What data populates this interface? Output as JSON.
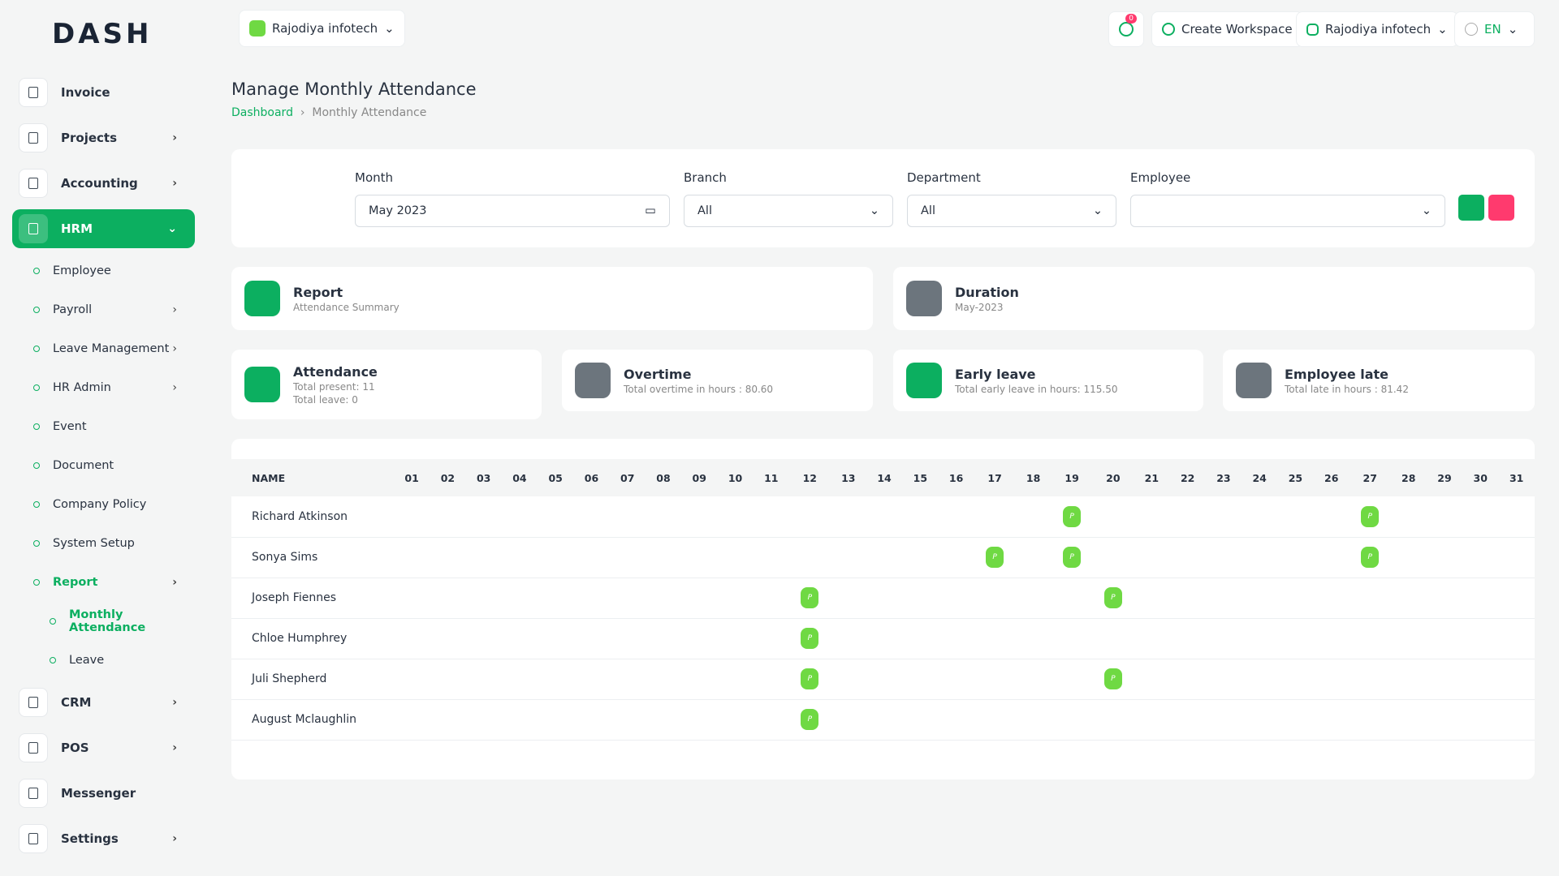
{
  "header": {
    "logo": "DASH",
    "workspace": "Rajodiya infotech",
    "notifications": "0",
    "create_workspace": "Create Workspace",
    "user": "Rajodiya infotech",
    "language": "EN"
  },
  "sidebar": {
    "items": [
      "Invoice",
      "Projects",
      "Accounting",
      "HRM"
    ],
    "hrm_items": [
      "Employee",
      "Payroll",
      "Leave Management",
      "HR Admin",
      "Event",
      "Document",
      "Company Policy",
      "System Setup",
      "Report"
    ],
    "report_items": [
      "Monthly Attendance",
      "Leave"
    ],
    "bottom_items": [
      "CRM",
      "POS",
      "Messenger",
      "Settings"
    ]
  },
  "page": {
    "title": "Manage Monthly Attendance",
    "breadcrumb": [
      "Dashboard",
      "Monthly Attendance"
    ]
  },
  "filters": {
    "month_label": "Month",
    "month_value": "May 2023",
    "branch_label": "Branch",
    "branch_value": "All",
    "department_label": "Department",
    "department_value": "All",
    "employee_label": "Employee"
  },
  "cards": {
    "report": {
      "title": "Report",
      "subtitle": "Attendance Summary"
    },
    "duration": {
      "title": "Duration",
      "subtitle": "May-2023"
    },
    "attendance": {
      "title": "Attendance",
      "lines": [
        "Total present: 11",
        "Total leave: 0"
      ]
    },
    "overtime": {
      "title": "Overtime",
      "subtitle": "Total overtime in hours : 80.60"
    },
    "early_leave": {
      "title": "Early leave",
      "subtitle": "Total early leave in hours: 115.50"
    },
    "late": {
      "title": "Employee late",
      "subtitle": "Total late in hours : 81.42"
    }
  },
  "table": {
    "name_header": "NAME",
    "days": [
      "01",
      "02",
      "03",
      "04",
      "05",
      "06",
      "07",
      "08",
      "09",
      "10",
      "11",
      "12",
      "13",
      "14",
      "15",
      "16",
      "17",
      "18",
      "19",
      "20",
      "21",
      "22",
      "23",
      "24",
      "25",
      "26",
      "27",
      "28",
      "29",
      "30",
      "31"
    ],
    "rows": [
      {
        "name": "Richard Atkinson",
        "cells": [
          null,
          null,
          null,
          null,
          null,
          null,
          null,
          null,
          null,
          null,
          null,
          null,
          null,
          null,
          null,
          null,
          null,
          null,
          "P",
          null,
          null,
          null,
          null,
          null,
          null,
          null,
          "P",
          null,
          null,
          null,
          null
        ]
      },
      {
        "name": "Sonya Sims",
        "cells": [
          null,
          null,
          null,
          null,
          null,
          null,
          null,
          null,
          null,
          null,
          null,
          null,
          null,
          null,
          null,
          null,
          "P",
          null,
          "P",
          null,
          null,
          null,
          null,
          null,
          null,
          null,
          "P",
          null,
          null,
          null,
          null
        ]
      },
      {
        "name": "Joseph Fiennes",
        "cells": [
          null,
          null,
          null,
          null,
          null,
          null,
          null,
          null,
          null,
          null,
          null,
          "P",
          null,
          null,
          null,
          null,
          null,
          null,
          null,
          "P",
          null,
          null,
          null,
          null,
          null,
          null,
          null,
          null,
          null,
          null,
          null
        ]
      },
      {
        "name": "Chloe Humphrey",
        "cells": [
          null,
          null,
          null,
          null,
          null,
          null,
          null,
          null,
          null,
          null,
          null,
          "P",
          null,
          null,
          null,
          null,
          null,
          null,
          null,
          null,
          null,
          null,
          null,
          null,
          null,
          null,
          null,
          null,
          null,
          null,
          null
        ]
      },
      {
        "name": "Juli Shepherd",
        "cells": [
          null,
          null,
          null,
          null,
          null,
          null,
          null,
          null,
          null,
          null,
          null,
          "P",
          null,
          null,
          null,
          null,
          null,
          null,
          null,
          "P",
          null,
          null,
          null,
          null,
          null,
          null,
          null,
          null,
          null,
          null,
          null
        ]
      },
      {
        "name": "August Mclaughlin",
        "cells": [
          null,
          null,
          null,
          null,
          null,
          null,
          null,
          null,
          null,
          null,
          null,
          "P",
          null,
          null,
          null,
          null,
          null,
          null,
          null,
          null,
          null,
          null,
          null,
          null,
          null,
          null,
          null,
          null,
          null,
          null,
          null
        ]
      }
    ]
  }
}
